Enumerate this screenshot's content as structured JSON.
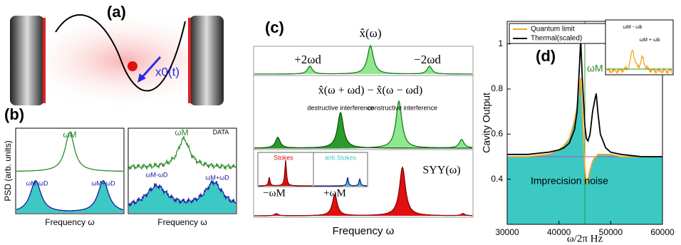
{
  "panels": {
    "a": {
      "label": "(a)",
      "displacement": "x0(t)"
    },
    "b": {
      "label": "(b)",
      "ylabel": "PSD (arb. units)",
      "left_xlabel": "Frequency ω",
      "right_xlabel": "Frequency ω",
      "left_peak": "ωM",
      "left_lower": "ωM-ωD",
      "left_upper": "ωM+ωD",
      "right_tag": "DATA",
      "right_peak": "ωM",
      "right_lower": "ωM-ωD",
      "right_upper": "ωM+ωD"
    },
    "c": {
      "label": "(c)",
      "top_title": "x̂(ω)",
      "left_sideband": "+2ωd",
      "right_sideband": "−2ωd",
      "mid_title": "x̂(ω + ωd) − x̂(ω − ωd)",
      "destructive": "destructive interference",
      "constructive": "constructive interference",
      "stokes": "Stokes",
      "anti_stokes": "anti Stokes",
      "bottom_title": "SYY(ω)",
      "minus": "−ωM",
      "plus": "+ωM",
      "xlabel": "Frequency ω"
    }
  },
  "chart_data": {
    "type": "line",
    "label": "(d)",
    "xlabel": "ω/2π Hz",
    "ylabel": "Cavity Output",
    "annotation": "Imprecision noise",
    "vline_label": "ωM",
    "inset_lower": "ωM - ωb",
    "inset_upper": "ωM + ωb",
    "x": [
      30000,
      34000,
      38000,
      40000,
      41000,
      42000,
      43000,
      43500,
      44000,
      44200,
      44500,
      45000,
      45300,
      45600,
      46000,
      46500,
      47000,
      47200,
      47500,
      48000,
      49000,
      50000,
      52000,
      56000,
      60000
    ],
    "series": [
      {
        "name": "Quantum limit",
        "color": "#f5a623",
        "values": [
          0.5,
          0.5,
          0.51,
          0.53,
          0.55,
          0.58,
          0.66,
          0.72,
          0.82,
          0.85,
          0.7,
          0.45,
          0.38,
          0.4,
          0.44,
          0.48,
          0.5,
          0.5,
          0.51,
          0.51,
          0.51,
          0.51,
          0.5,
          0.5,
          0.5
        ]
      },
      {
        "name": "Thermal(scaled)",
        "color": "#000000",
        "values": [
          0.51,
          0.51,
          0.52,
          0.53,
          0.54,
          0.56,
          0.62,
          0.7,
          0.92,
          1.02,
          0.85,
          0.64,
          0.58,
          0.57,
          0.6,
          0.7,
          0.76,
          0.78,
          0.7,
          0.6,
          0.54,
          0.52,
          0.51,
          0.5,
          0.5
        ]
      }
    ],
    "fill_color": "#3cc9c4",
    "xlim": [
      30000,
      60000
    ],
    "xticks": [
      30000,
      40000,
      50000,
      60000
    ],
    "ylim": [
      0.2,
      1.1
    ],
    "yticks": [
      0.4,
      0.6,
      0.8,
      1
    ]
  }
}
